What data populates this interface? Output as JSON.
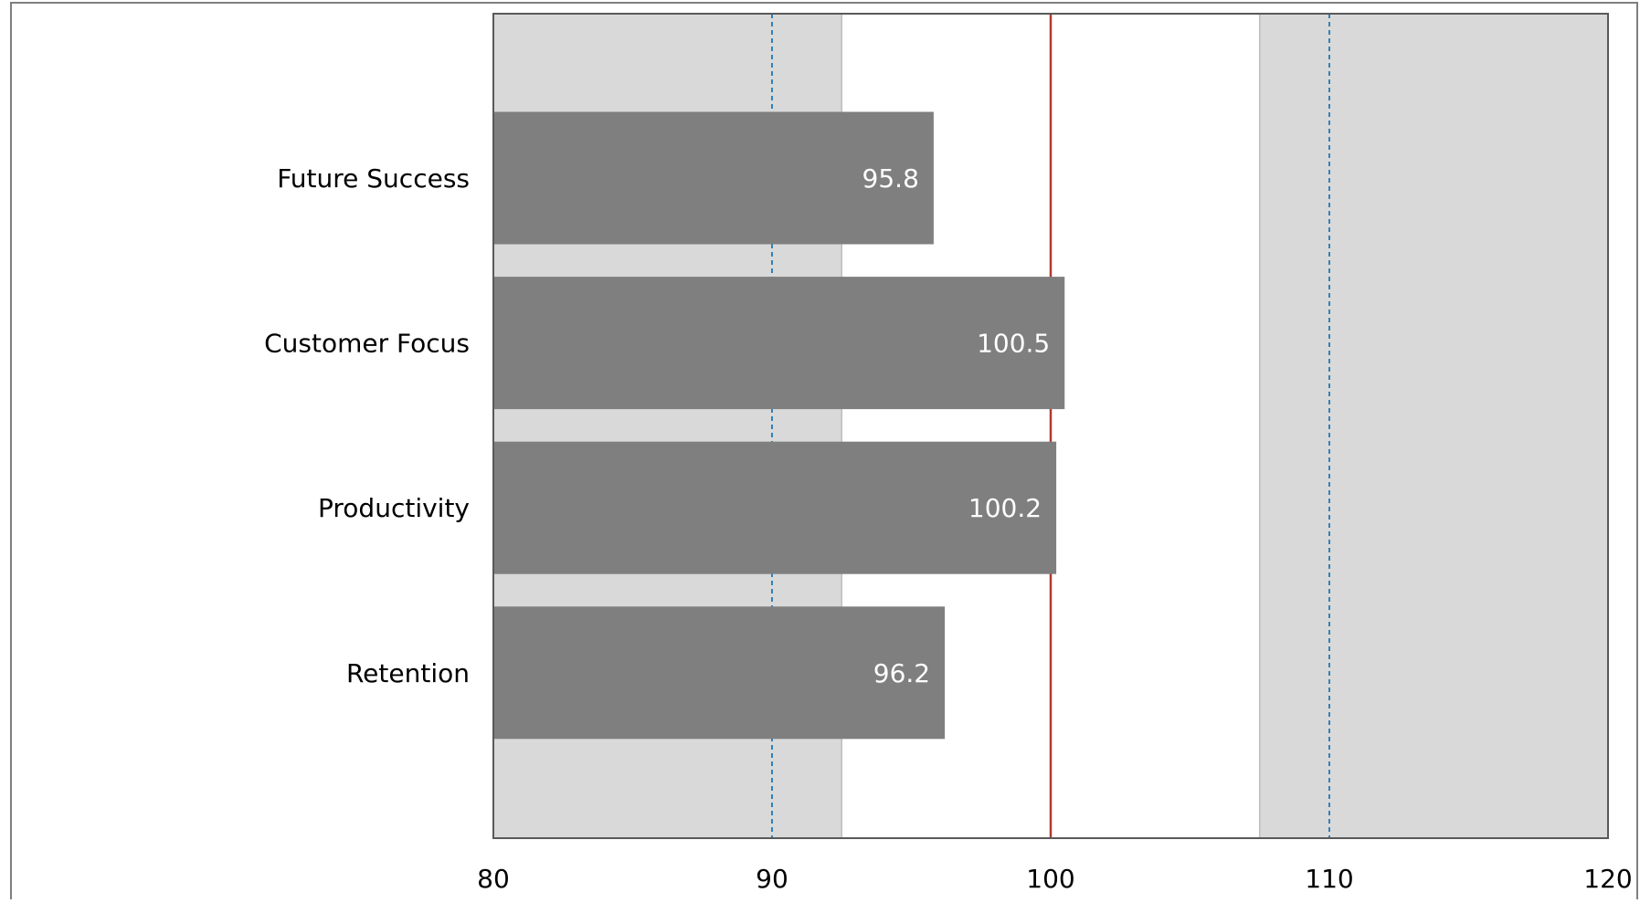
{
  "chart_data": {
    "type": "bar",
    "orientation": "horizontal",
    "categories": [
      "Future Success",
      "Customer Focus",
      "Productivity",
      "Retention"
    ],
    "values": [
      95.8,
      100.5,
      100.2,
      96.2
    ],
    "data_labels": [
      "95.8",
      "100.5",
      "100.2",
      "96.2"
    ],
    "xlim": [
      80,
      120
    ],
    "x_ticks": [
      80,
      90,
      100,
      110,
      120
    ],
    "x_tick_labels": [
      "80",
      "90",
      "100",
      "110",
      "120"
    ],
    "title": "",
    "xlabel": "",
    "ylabel": "",
    "grid": false,
    "shaded_bands": [
      {
        "from": 80,
        "to": 92.5
      },
      {
        "from": 107.5,
        "to": 120
      }
    ],
    "reference_lines": [
      {
        "value": 90,
        "style": "dashed",
        "color": "#1f77b4"
      },
      {
        "value": 100,
        "style": "solid",
        "color": "#b03a2e"
      },
      {
        "value": 110,
        "style": "dashed",
        "color": "#1f77b4"
      }
    ],
    "colors": {
      "bar": "#7f7f7f",
      "band": "#d9d9d9",
      "band_edge": "#a6a6a6",
      "plot_border": "#595959",
      "frame_border": "#7f7f7f",
      "data_label": "#ffffff",
      "text": "#000000"
    }
  }
}
